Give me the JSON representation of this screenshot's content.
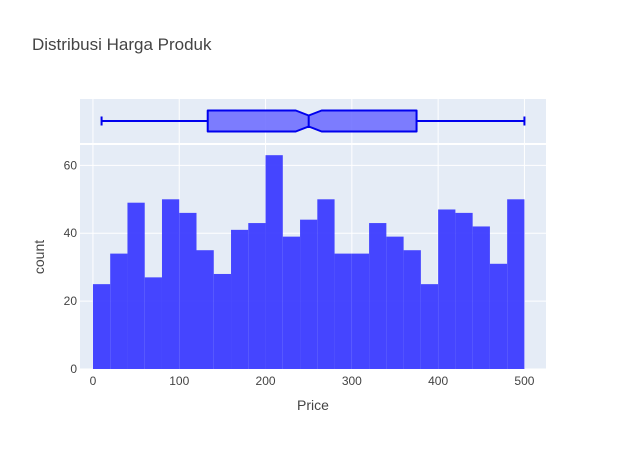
{
  "chart_data": {
    "type": "histogram",
    "title": "Distribusi Harga Produk",
    "xlabel": "Price",
    "ylabel": "count",
    "xlim": [
      -15,
      525
    ],
    "ylim": [
      0,
      66
    ],
    "x_ticks": [
      0,
      100,
      200,
      300,
      400,
      500
    ],
    "y_ticks": [
      0,
      20,
      40,
      60
    ],
    "bin_width": 20,
    "bins": [
      {
        "x0": 0,
        "x1": 20,
        "count": 25
      },
      {
        "x0": 20,
        "x1": 40,
        "count": 34
      },
      {
        "x0": 40,
        "x1": 60,
        "count": 49
      },
      {
        "x0": 60,
        "x1": 80,
        "count": 27
      },
      {
        "x0": 80,
        "x1": 100,
        "count": 50
      },
      {
        "x0": 100,
        "x1": 120,
        "count": 46
      },
      {
        "x0": 120,
        "x1": 140,
        "count": 35
      },
      {
        "x0": 140,
        "x1": 160,
        "count": 28
      },
      {
        "x0": 160,
        "x1": 180,
        "count": 41
      },
      {
        "x0": 180,
        "x1": 200,
        "count": 43
      },
      {
        "x0": 200,
        "x1": 220,
        "count": 63
      },
      {
        "x0": 220,
        "x1": 240,
        "count": 39
      },
      {
        "x0": 240,
        "x1": 260,
        "count": 44
      },
      {
        "x0": 260,
        "x1": 280,
        "count": 50
      },
      {
        "x0": 280,
        "x1": 300,
        "count": 34
      },
      {
        "x0": 300,
        "x1": 320,
        "count": 34
      },
      {
        "x0": 320,
        "x1": 340,
        "count": 43
      },
      {
        "x0": 340,
        "x1": 360,
        "count": 39
      },
      {
        "x0": 360,
        "x1": 380,
        "count": 35
      },
      {
        "x0": 380,
        "x1": 400,
        "count": 25
      },
      {
        "x0": 400,
        "x1": 420,
        "count": 47
      },
      {
        "x0": 420,
        "x1": 440,
        "count": 46
      },
      {
        "x0": 440,
        "x1": 460,
        "count": 42
      },
      {
        "x0": 460,
        "x1": 480,
        "count": 31
      },
      {
        "x0": 480,
        "x1": 500,
        "count": 50
      }
    ],
    "marginal_box": {
      "type": "notched-box",
      "min": 10,
      "q1": 133,
      "median": 250,
      "q3": 375,
      "max": 500,
      "notch_low": 235,
      "notch_high": 265
    },
    "colors": {
      "bar_fill": "#3c3cff",
      "box_line": "#0000ee",
      "box_fill": "#7070ff",
      "plot_bg": "#e5ecf6",
      "grid": "#ffffff"
    },
    "grid": true
  }
}
